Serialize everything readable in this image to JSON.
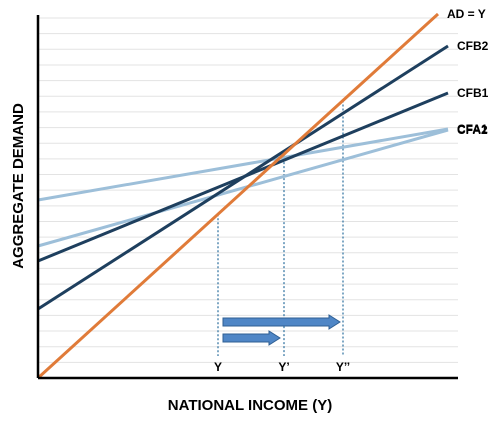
{
  "chart_data": {
    "type": "line",
    "title": "",
    "xlabel": "NATIONAL INCOME (Y)",
    "ylabel": "AGGREGATE DEMAND",
    "xlim": [
      0,
      420
    ],
    "ylim": [
      0,
      360
    ],
    "grid": true,
    "grid_lines": 23,
    "series": [
      {
        "name": "AD = Y",
        "color": "#e07b39",
        "x": [
          0,
          400
        ],
        "y": [
          0,
          364
        ]
      },
      {
        "name": "CFB2",
        "color": "#1e3f5e",
        "x": [
          0,
          410
        ],
        "y": [
          69,
          332
        ]
      },
      {
        "name": "CFB1",
        "color": "#1e3f5e",
        "x": [
          0,
          410
        ],
        "y": [
          117,
          285
        ]
      },
      {
        "name": "CFA2",
        "color": "#9dbfd9",
        "x": [
          0,
          410
        ],
        "y": [
          132,
          248
        ]
      },
      {
        "name": "CFA1",
        "color": "#9dbfd9",
        "x": [
          0,
          410
        ],
        "y": [
          178,
          249
        ]
      }
    ],
    "x_ticks": [
      {
        "label": "Y",
        "x": 180
      },
      {
        "label": "Y’",
        "x": 246
      },
      {
        "label": "Y’’",
        "x": 305
      }
    ],
    "arrows": [
      {
        "from": 185,
        "to": 242
      },
      {
        "from": 185,
        "to": 302
      }
    ],
    "colors": {
      "axis": "#000000",
      "grid": "#e3e3e3",
      "drop_line": "#2b6f9e",
      "arrow_fill": "#4f86c6",
      "arrow_stroke": "#2f5f93"
    }
  }
}
